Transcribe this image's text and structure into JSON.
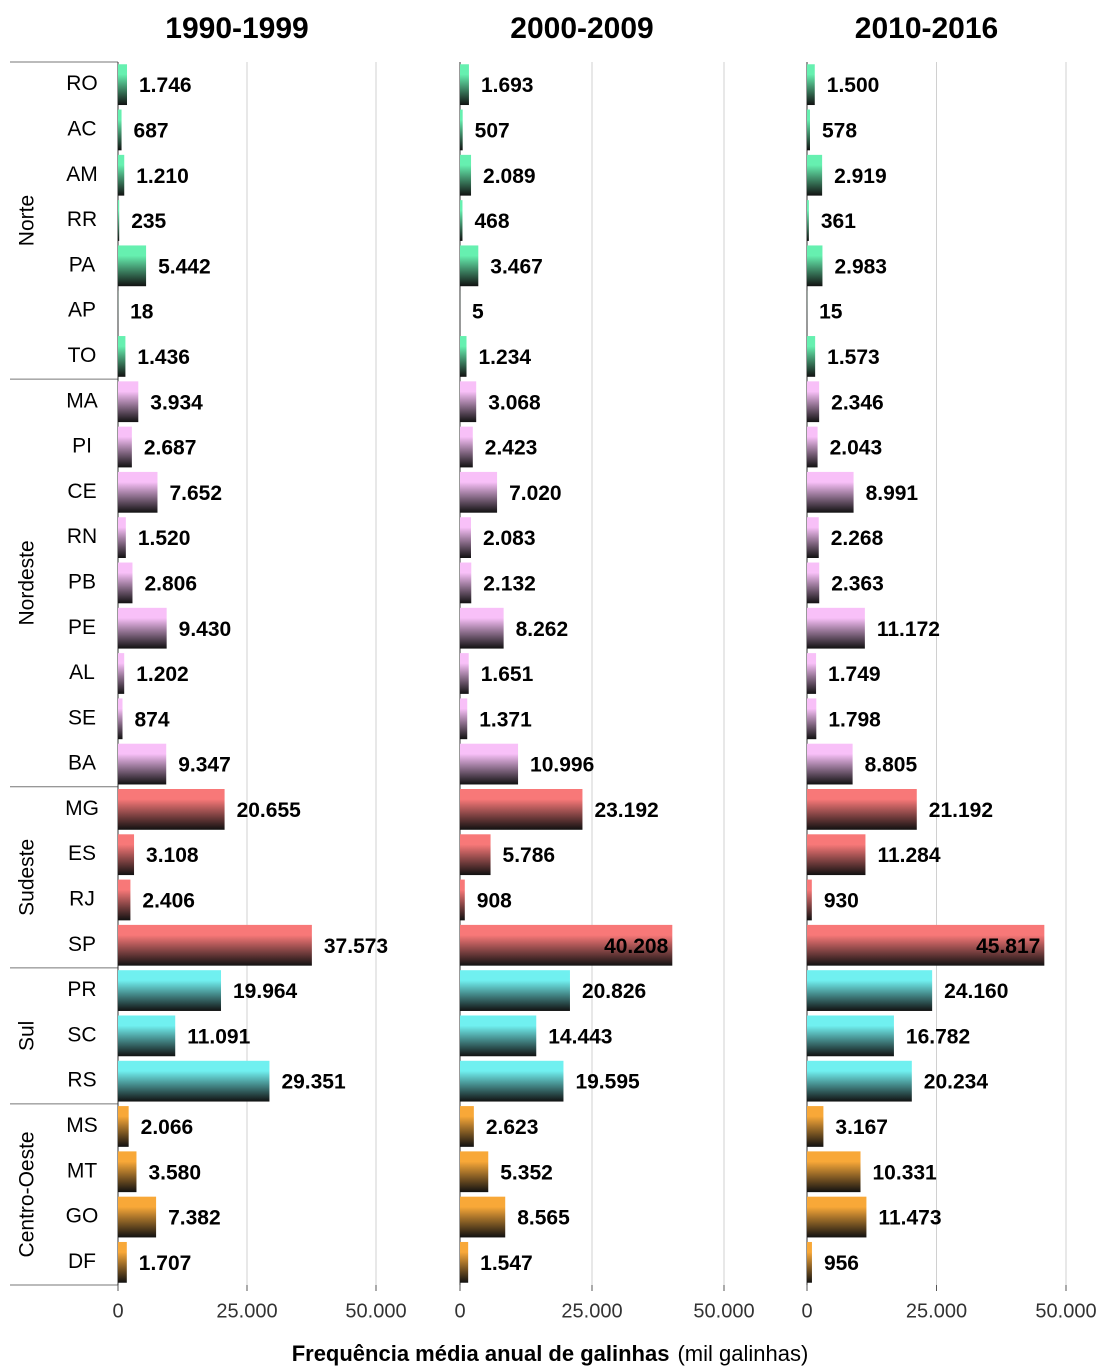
{
  "chart_data": {
    "type": "bar",
    "orientation": "horizontal",
    "xlabel": "Frequência média anual de galinhas",
    "xlabel_unit": "(mil galinhas)",
    "xlim": [
      0,
      50000
    ],
    "xticks": [
      0,
      {
        "value": 25000,
        "label": "25.000"
      },
      {
        "value": 50000,
        "label": "50.000"
      }
    ],
    "grid": true,
    "groups": [
      {
        "name": "Norte",
        "color": "#66f0b0",
        "categories": [
          "RO",
          "AC",
          "AM",
          "RR",
          "PA",
          "AP",
          "TO"
        ]
      },
      {
        "name": "Nordeste",
        "color": "#f8c0f8",
        "categories": [
          "MA",
          "PI",
          "CE",
          "RN",
          "PB",
          "PE",
          "AL",
          "SE",
          "BA"
        ]
      },
      {
        "name": "Sudeste",
        "color": "#f87878",
        "categories": [
          "MG",
          "ES",
          "RJ",
          "SP"
        ]
      },
      {
        "name": "Sul",
        "color": "#70f0f0",
        "categories": [
          "PR",
          "SC",
          "RS"
        ]
      },
      {
        "name": "Centro-Oeste",
        "color": "#f8a838",
        "categories": [
          "MS",
          "MT",
          "GO",
          "DF"
        ]
      }
    ],
    "panels": [
      {
        "title": "1990-1999",
        "values": [
          1746,
          687,
          1210,
          235,
          5442,
          18,
          1436,
          3934,
          2687,
          7652,
          1520,
          2806,
          9430,
          1202,
          874,
          9347,
          20655,
          3108,
          2406,
          37573,
          19964,
          11091,
          29351,
          2066,
          3580,
          7382,
          1707
        ],
        "value_labels": [
          "1.746",
          "687",
          "1.210",
          "235",
          "5.442",
          "18",
          "1.436",
          "3.934",
          "2.687",
          "7.652",
          "1.520",
          "2.806",
          "9.430",
          "1.202",
          "874",
          "9.347",
          "20.655",
          "3.108",
          "2.406",
          "37.573",
          "19.964",
          "11.091",
          "29.351",
          "2.066",
          "3.580",
          "7.382",
          "1.707"
        ]
      },
      {
        "title": "2000-2009",
        "values": [
          1693,
          507,
          2089,
          468,
          3467,
          5,
          1234,
          3068,
          2423,
          7020,
          2083,
          2132,
          8262,
          1651,
          1371,
          10996,
          23192,
          5786,
          908,
          40208,
          20826,
          14443,
          19595,
          2623,
          5352,
          8565,
          1547
        ],
        "value_labels": [
          "1.693",
          "507",
          "2.089",
          "468",
          "3.467",
          "5",
          "1.234",
          "3.068",
          "2.423",
          "7.020",
          "2.083",
          "2.132",
          "8.262",
          "1.651",
          "1.371",
          "10.996",
          "23.192",
          "5.786",
          "908",
          "40.208",
          "20.826",
          "14.443",
          "19.595",
          "2.623",
          "5.352",
          "8.565",
          "1.547"
        ]
      },
      {
        "title": "2010-2016",
        "values": [
          1500,
          578,
          2919,
          361,
          2983,
          15,
          1573,
          2346,
          2043,
          8991,
          2268,
          2363,
          11172,
          1749,
          1798,
          8805,
          21192,
          11284,
          930,
          45817,
          24160,
          16782,
          20234,
          3167,
          10331,
          11473,
          956
        ],
        "value_labels": [
          "1.500",
          "578",
          "2.919",
          "361",
          "2.983",
          "15",
          "1.573",
          "2.346",
          "2.043",
          "8.991",
          "2.268",
          "2.363",
          "11.172",
          "1.749",
          "1.798",
          "8.805",
          "21.192",
          "11.284",
          "930",
          "45.817",
          "24.160",
          "16.782",
          "20.234",
          "3.167",
          "10.331",
          "11.473",
          "956"
        ]
      }
    ]
  }
}
